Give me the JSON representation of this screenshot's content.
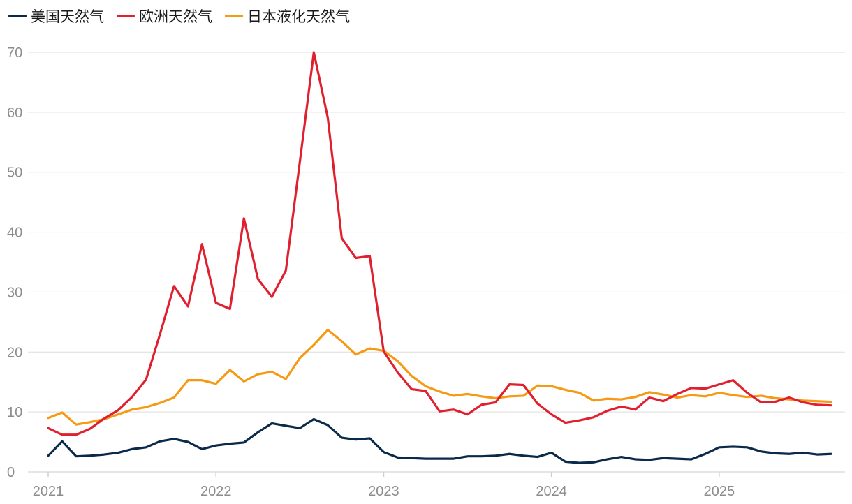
{
  "chart_data": {
    "type": "line",
    "title": "",
    "xlabel": "",
    "ylabel": "",
    "ylim": [
      0,
      70
    ],
    "yticks": [
      0,
      10,
      20,
      30,
      40,
      50,
      60,
      70
    ],
    "xticks": [
      "2021",
      "2022",
      "2023",
      "2024",
      "2025"
    ],
    "xlim": [
      "2021-01",
      "2025-09"
    ],
    "grid": true,
    "legend_position": "top-left",
    "x": [
      "2021-01",
      "2021-02",
      "2021-03",
      "2021-04",
      "2021-05",
      "2021-06",
      "2021-07",
      "2021-08",
      "2021-09",
      "2021-10",
      "2021-11",
      "2021-12",
      "2022-01",
      "2022-02",
      "2022-03",
      "2022-04",
      "2022-05",
      "2022-06",
      "2022-07",
      "2022-08",
      "2022-09",
      "2022-10",
      "2022-11",
      "2022-12",
      "2023-01",
      "2023-02",
      "2023-03",
      "2023-04",
      "2023-05",
      "2023-06",
      "2023-07",
      "2023-08",
      "2023-09",
      "2023-10",
      "2023-11",
      "2023-12",
      "2024-01",
      "2024-02",
      "2024-03",
      "2024-04",
      "2024-05",
      "2024-06",
      "2024-07",
      "2024-08",
      "2024-09",
      "2024-10",
      "2024-11",
      "2024-12",
      "2025-01",
      "2025-02",
      "2025-03",
      "2025-04",
      "2025-05",
      "2025-06",
      "2025-07",
      "2025-08",
      "2025-09"
    ],
    "series": [
      {
        "name": "美国天然气",
        "color": "#0b2a4a",
        "values": [
          2.7,
          5.1,
          2.6,
          2.7,
          2.9,
          3.2,
          3.8,
          4.1,
          5.1,
          5.5,
          5.0,
          3.8,
          4.4,
          4.7,
          4.9,
          6.6,
          8.1,
          7.7,
          7.3,
          8.8,
          7.8,
          5.7,
          5.4,
          5.6,
          3.3,
          2.4,
          2.3,
          2.2,
          2.2,
          2.2,
          2.6,
          2.6,
          2.7,
          3.0,
          2.7,
          2.5,
          3.2,
          1.7,
          1.5,
          1.6,
          2.1,
          2.5,
          2.1,
          2.0,
          2.3,
          2.2,
          2.1,
          3.0,
          4.1,
          4.2,
          4.1,
          3.4,
          3.1,
          3.0,
          3.2,
          2.9,
          3.0
        ]
      },
      {
        "name": "欧洲天然气",
        "color": "#e0202f",
        "values": [
          7.3,
          6.2,
          6.2,
          7.2,
          8.9,
          10.3,
          12.5,
          15.4,
          23.0,
          31.0,
          27.6,
          38.0,
          28.2,
          27.2,
          42.3,
          32.2,
          29.2,
          33.6,
          51.7,
          70.0,
          59.1,
          39.0,
          35.7,
          36.0,
          20.1,
          16.6,
          13.8,
          13.5,
          10.1,
          10.4,
          9.6,
          11.2,
          11.6,
          14.6,
          14.5,
          11.4,
          9.6,
          8.2,
          8.6,
          9.1,
          10.2,
          10.9,
          10.4,
          12.4,
          11.8,
          13.0,
          14.0,
          13.9,
          14.6,
          15.3,
          13.2,
          11.6,
          11.7,
          12.4,
          11.6,
          11.2,
          11.1
        ]
      },
      {
        "name": "日本液化天然气",
        "color": "#f59a12",
        "values": [
          9.0,
          9.9,
          7.9,
          8.3,
          8.8,
          9.6,
          10.4,
          10.8,
          11.5,
          12.4,
          15.3,
          15.3,
          14.7,
          17.0,
          15.1,
          16.3,
          16.7,
          15.5,
          19.0,
          21.2,
          23.7,
          21.8,
          19.6,
          20.6,
          20.2,
          18.5,
          16.0,
          14.3,
          13.4,
          12.7,
          13.0,
          12.6,
          12.3,
          12.6,
          12.7,
          14.4,
          14.3,
          13.7,
          13.2,
          11.9,
          12.2,
          12.1,
          12.5,
          13.3,
          12.9,
          12.4,
          12.8,
          12.6,
          13.2,
          12.8,
          12.5,
          12.7,
          12.3,
          12.1,
          11.9,
          11.8,
          11.7
        ]
      }
    ]
  }
}
